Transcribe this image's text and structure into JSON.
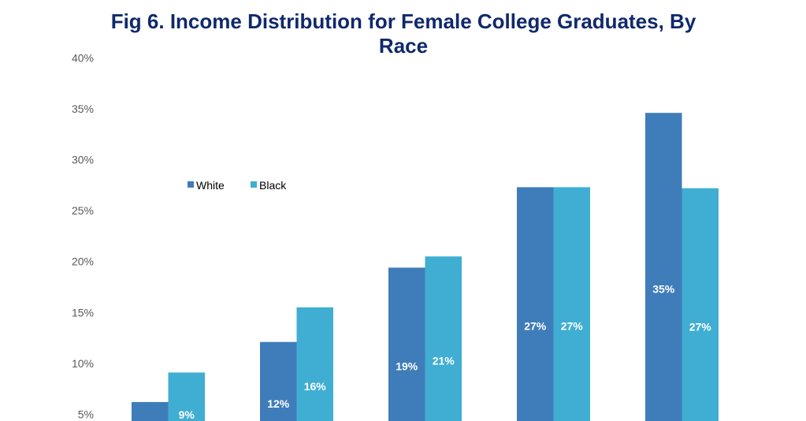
{
  "chart_data": {
    "type": "bar",
    "title": "Fig 6. Income Distribution for Female College Graduates, By Race",
    "ylim": [
      0,
      40
    ],
    "yticks": [
      "5%",
      "10%",
      "15%",
      "20%",
      "25%",
      "30%",
      "35%",
      "40%"
    ],
    "ytick_values": [
      5,
      10,
      15,
      20,
      25,
      30,
      35,
      40
    ],
    "grid": false,
    "legend_placement": "top-left",
    "series": [
      {
        "name": "White",
        "color": "#3F7CBA",
        "values": [
          6.2,
          12.1,
          19.4,
          27.3,
          34.6
        ],
        "labels": [
          null,
          "12%",
          "19%",
          "27%",
          "35%"
        ]
      },
      {
        "name": "Black",
        "color": "#40AED2",
        "values": [
          9.1,
          15.5,
          20.5,
          27.3,
          27.2
        ],
        "labels": [
          "9%",
          "16%",
          "21%",
          "27%",
          "27%"
        ]
      }
    ]
  }
}
